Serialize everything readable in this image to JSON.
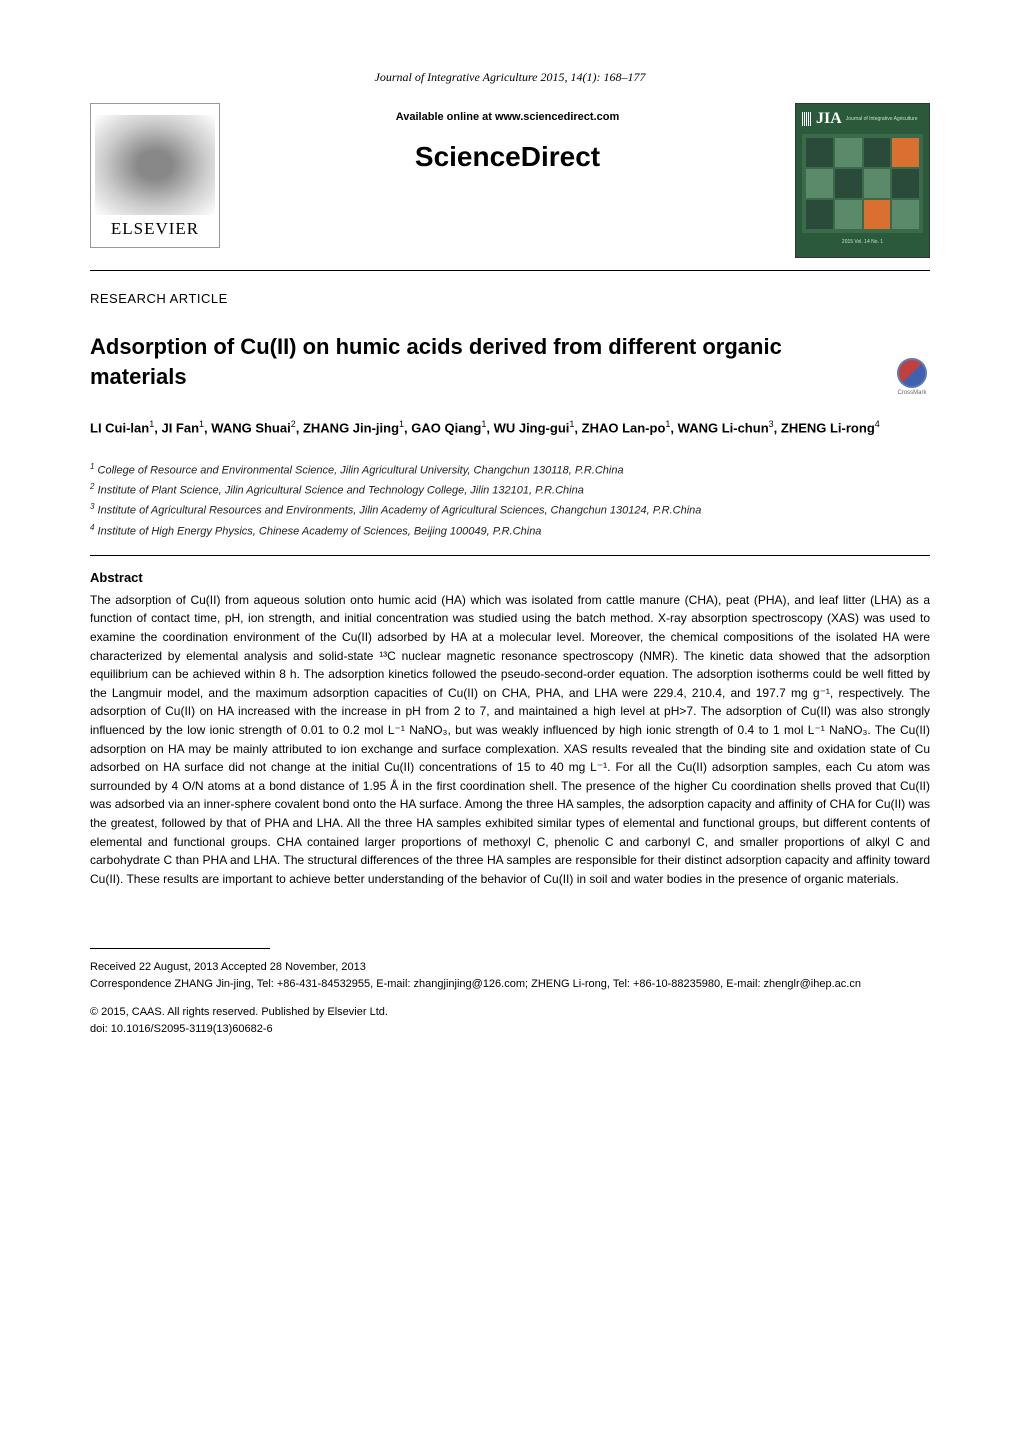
{
  "journal_citation": "Journal of Integrative Agriculture  2015, 14(1): 168–177",
  "header": {
    "available_online": "Available online at www.sciencedirect.com",
    "science_direct": "ScienceDirect",
    "elsevier_label": "ELSEVIER",
    "jia_label": "JIA",
    "jia_subtitle": "Journal of Integrative Agriculture",
    "jia_issue": "2015  Vol. 14  No. 1"
  },
  "article_type": "RESEARCH ARTICLE",
  "title": "Adsorption of Cu(II) on humic acids derived from different organic materials",
  "crossmark_label": "CrossMark",
  "authors_html": "LI Cui-lan<sup>1</sup>, JI Fan<sup>1</sup>, WANG Shuai<sup>2</sup>, ZHANG Jin-jing<sup>1</sup>, GAO Qiang<sup>1</sup>, WU Jing-gui<sup>1</sup>, ZHAO Lan-po<sup>1</sup>, WANG Li-chun<sup>3</sup>, ZHENG Li-rong<sup>4</sup>",
  "affiliations": [
    "College of Resource and Environmental Science, Jilin Agricultural University, Changchun 130118, P.R.China",
    "Institute of Plant Science, Jilin Agricultural Science and Technology College, Jilin 132101, P.R.China",
    "Institute of Agricultural Resources and Environments, Jilin Academy of Agricultural Sciences, Changchun 130124, P.R.China",
    "Institute of High Energy Physics, Chinese Academy of Sciences, Beijing 100049, P.R.China"
  ],
  "abstract_label": "Abstract",
  "abstract_text": "The adsorption of Cu(II) from aqueous solution onto humic acid (HA) which was isolated from cattle manure (CHA), peat (PHA), and leaf litter (LHA) as a function of contact time, pH, ion strength, and initial concentration was studied using the batch method. X-ray absorption spectroscopy (XAS) was used to examine the coordination environment of the Cu(II) adsorbed by HA at a molecular level. Moreover, the chemical compositions of the isolated HA were characterized by elemental analysis and solid-state ¹³C nuclear magnetic resonance spectroscopy (NMR). The kinetic data showed that the adsorption equilibrium can be achieved within 8 h. The adsorption kinetics followed the pseudo-second-order equation. The adsorption isotherms could be well fitted by the Langmuir model, and the maximum adsorption capacities of Cu(II) on CHA, PHA, and LHA were 229.4, 210.4, and 197.7 mg g⁻¹, respectively. The adsorption of Cu(II) on HA increased with the increase in pH from 2 to 7, and maintained a high level at pH>7. The adsorption of Cu(II) was also strongly influenced by the low ionic strength of 0.01 to 0.2 mol L⁻¹ NaNO₃, but was weakly influenced by high ionic strength of 0.4 to 1 mol L⁻¹ NaNO₃. The Cu(II) adsorption on HA may be mainly attributed to ion exchange and surface complexation. XAS results revealed that the binding site and oxidation state of Cu adsorbed on HA surface did not change at the initial Cu(II) concentrations of 15 to 40 mg L⁻¹. For all the Cu(II) adsorption samples, each Cu atom was surrounded by 4 O/N atoms at a bond distance of 1.95 Å in the first coordination shell. The presence of the higher Cu coordination shells proved that Cu(II) was adsorbed via an inner-sphere covalent bond onto the HA surface. Among the three HA samples, the adsorption capacity and affinity of CHA for Cu(II) was the greatest, followed by that of PHA and LHA. All the three HA samples exhibited similar types of elemental and functional groups, but different contents of elemental and functional groups. CHA contained larger proportions of methoxyl C, phenolic C and carbonyl C, and smaller proportions of alkyl C and carbohydrate C than PHA and LHA. The structural differences of the three HA samples are responsible for their distinct adsorption capacity and affinity toward Cu(II). These results are important to achieve better understanding of the behavior of Cu(II) in soil and water bodies in the presence of organic materials.",
  "footer": {
    "received_accepted": "Received  22 August, 2013    Accepted  28 November, 2013",
    "correspondence": "Correspondence ZHANG Jin-jing, Tel: +86-431-84532955, E-mail: zhangjinjing@126.com; ZHENG Li-rong, Tel: +86-10-88235980, E-mail: zhenglr@ihep.ac.cn",
    "copyright": "© 2015, CAAS. All rights reserved. Published by Elsevier Ltd.",
    "doi": "doi: 10.1016/S2095-3119(13)60682-6"
  },
  "colors": {
    "text": "#000000",
    "background": "#ffffff",
    "jia_bg": "#2a5a3a",
    "jia_cell": "#5a8a6a",
    "jia_cell_dark": "#2a4a3a",
    "jia_cell_orange": "#d97030",
    "crossmark_red": "#c04040",
    "crossmark_blue": "#4060b0"
  },
  "typography": {
    "title_fontsize": 22,
    "body_fontsize": 12,
    "authors_fontsize": 13,
    "affiliations_fontsize": 11,
    "footer_fontsize": 11,
    "journal_header_fontsize": 12
  }
}
